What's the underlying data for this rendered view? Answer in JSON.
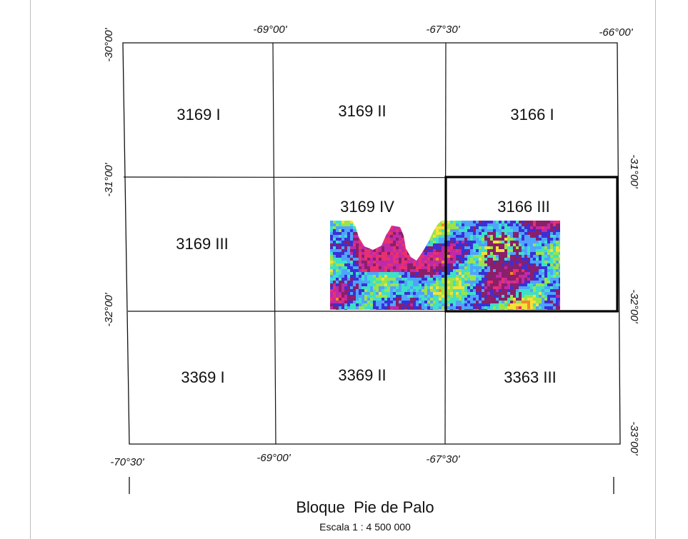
{
  "title": "Bloque  Pie de Palo",
  "scale": "Escala 1 : 4 500 000",
  "top_longitudes": [
    "-69°00'",
    "-67°30'",
    "-66°00'"
  ],
  "bottom_longitudes": [
    "-70°30'",
    "-69°00'",
    "-67°30'"
  ],
  "left_latitudes": [
    "-30°00'",
    "-31°00'",
    "-32°00'"
  ],
  "right_latitudes": [
    "-31°00'",
    "-32°00'",
    "-33°00'"
  ],
  "sheets": [
    {
      "id": "3169 I"
    },
    {
      "id": "3169 II"
    },
    {
      "id": "3166 I"
    },
    {
      "id": "3169 III"
    },
    {
      "id": "3169 IV"
    },
    {
      "id": "3166 III"
    },
    {
      "id": "3369 I"
    },
    {
      "id": "3369 II"
    },
    {
      "id": "3363 III"
    }
  ],
  "highlighted_sheet": "3166 III",
  "colors": {
    "grid": "#111111",
    "highlight_border": "#000000",
    "frame": "#bdbdbd",
    "interferogram": [
      "#3b2fd6",
      "#4fa3ff",
      "#3ee0c8",
      "#9be34a",
      "#f2e23a",
      "#f08a2a",
      "#e8306e",
      "#c02aa8",
      "#8a1f6a"
    ]
  }
}
